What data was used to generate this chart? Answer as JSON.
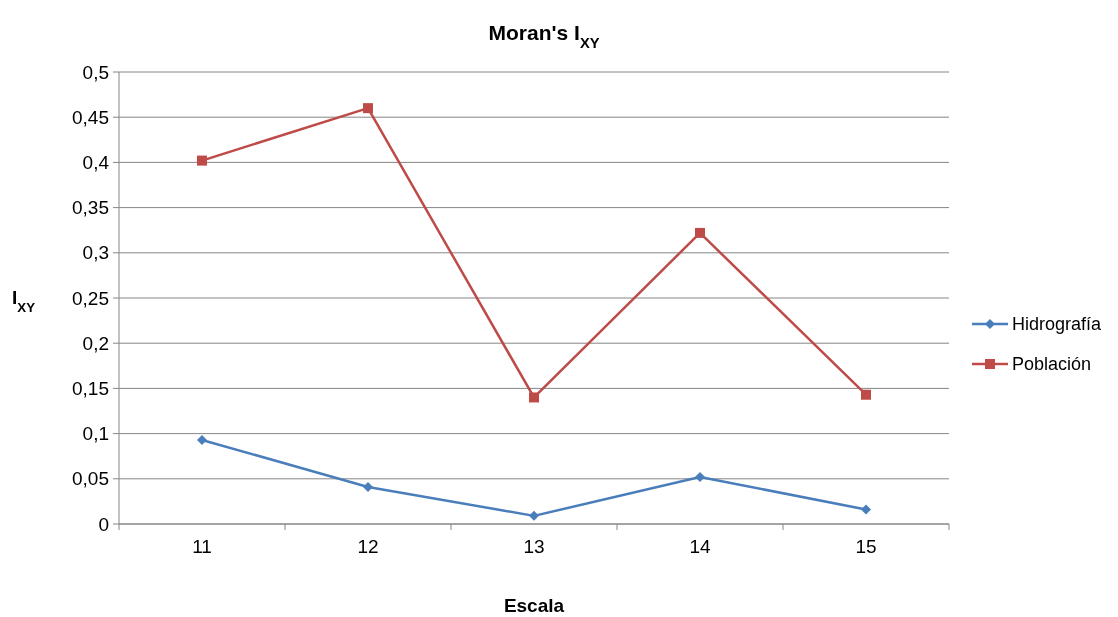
{
  "chart_data": {
    "type": "line",
    "title": "Moran's I$_{XY}$",
    "xlabel": "Escala",
    "ylabel": "I$_{XY}$",
    "categories": [
      "11",
      "12",
      "13",
      "14",
      "15"
    ],
    "series": [
      {
        "name": "Hidrografía",
        "color": "#4a7ebb",
        "marker": "diamond",
        "values": [
          0.093,
          0.041,
          0.009,
          0.052,
          0.016
        ]
      },
      {
        "name": "Población",
        "color": "#be4b48",
        "marker": "square",
        "values": [
          0.402,
          0.46,
          0.14,
          0.322,
          0.143
        ]
      }
    ],
    "ylim": [
      0,
      0.5
    ],
    "yticks": [
      0,
      {
        "value": 0.05,
        "label": "0,05"
      },
      {
        "value": 0.1,
        "label": "0,1"
      },
      {
        "value": 0.15,
        "label": "0,15"
      },
      {
        "value": 0.2,
        "label": "0,2"
      },
      {
        "value": 0.25,
        "label": "0,25"
      },
      {
        "value": 0.3,
        "label": "0,3"
      },
      {
        "value": 0.35,
        "label": "0,35"
      },
      {
        "value": 0.4,
        "label": "0,4"
      },
      {
        "value": 0.45,
        "label": "0,45"
      },
      {
        "value": 0.5,
        "label": "0,5"
      }
    ],
    "grid": "y",
    "legend": "right",
    "line_style": "solid"
  }
}
